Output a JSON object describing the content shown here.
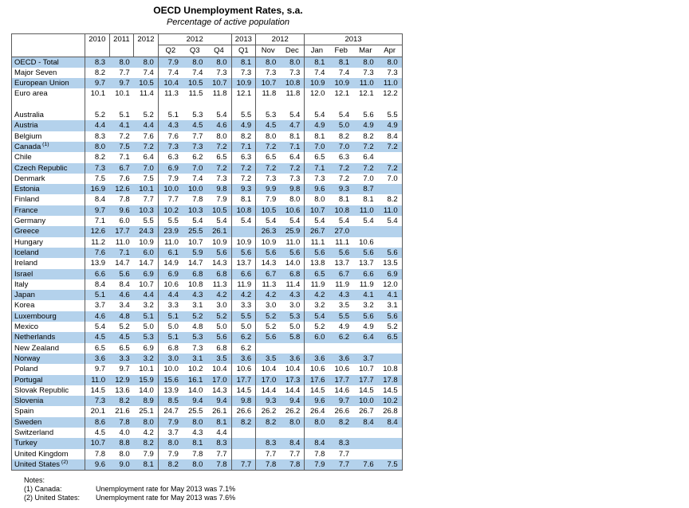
{
  "title": "OECD Unemployment Rates, s.a.",
  "subtitle": "Percentage of active population",
  "table": {
    "header": {
      "row1": [
        {
          "label": "",
          "rowspan": 2,
          "cls": "corner",
          "name": "corner-cell"
        },
        {
          "label": "2010",
          "rowspan": 2,
          "cls": "yr sep",
          "name": "col-header-2010"
        },
        {
          "label": "2011",
          "rowspan": 2,
          "cls": "yr sep",
          "name": "col-header-2011"
        },
        {
          "label": "2012",
          "rowspan": 2,
          "cls": "yr sep",
          "name": "col-header-2012"
        },
        {
          "label": "2012",
          "colspan": 3,
          "cls": "grp sep",
          "name": "group-header-2012-quarters"
        },
        {
          "label": "2013",
          "colspan": 1,
          "cls": "grp sep",
          "name": "group-header-2013-q1"
        },
        {
          "label": "2012",
          "colspan": 2,
          "cls": "grp sep",
          "name": "group-header-2012-months"
        },
        {
          "label": "2013",
          "colspan": 4,
          "cls": "grp sep",
          "name": "group-header-2013-months"
        }
      ],
      "row2": [
        "Q2",
        "Q3",
        "Q4",
        "Q1",
        "Nov",
        "Dec",
        "Jan",
        "Feb",
        "Mar",
        "Apr"
      ],
      "row2_sep_indices": [
        0,
        3,
        4,
        6
      ],
      "body_sep_indices": [
        0,
        3,
        6,
        7,
        9
      ]
    },
    "rows": [
      {
        "name": "OECD - Total",
        "values": [
          "8.3",
          "8.0",
          "8.0",
          "7.9",
          "8.0",
          "8.0",
          "8.1",
          "8.0",
          "8.0",
          "8.1",
          "8.1",
          "8.0",
          "8.0"
        ]
      },
      {
        "name": "Major Seven",
        "values": [
          "8.2",
          "7.7",
          "7.4",
          "7.4",
          "7.4",
          "7.3",
          "7.3",
          "7.3",
          "7.3",
          "7.4",
          "7.4",
          "7.3",
          "7.3"
        ]
      },
      {
        "name": "European Union",
        "values": [
          "9.7",
          "9.7",
          "10.5",
          "10.4",
          "10.5",
          "10.7",
          "10.9",
          "10.7",
          "10.8",
          "10.9",
          "10.9",
          "11.0",
          "11.0"
        ]
      },
      {
        "name": "Euro area",
        "values": [
          "10.1",
          "10.1",
          "11.4",
          "11.3",
          "11.5",
          "11.8",
          "12.1",
          "11.8",
          "11.8",
          "12.0",
          "12.1",
          "12.1",
          "12.2"
        ]
      },
      {
        "spacer": true
      },
      {
        "name": "Australia",
        "values": [
          "5.2",
          "5.1",
          "5.2",
          "5.1",
          "5.3",
          "5.4",
          "5.5",
          "5.3",
          "5.4",
          "5.4",
          "5.4",
          "5.6",
          "5.5"
        ]
      },
      {
        "name": "Austria",
        "values": [
          "4.4",
          "4.1",
          "4.4",
          "4.3",
          "4.5",
          "4.6",
          "4.9",
          "4.5",
          "4.7",
          "4.9",
          "5.0",
          "4.9",
          "4.9"
        ]
      },
      {
        "name": "Belgium",
        "values": [
          "8.3",
          "7.2",
          "7.6",
          "7.6",
          "7.7",
          "8.0",
          "8.2",
          "8.0",
          "8.1",
          "8.1",
          "8.2",
          "8.2",
          "8.4"
        ]
      },
      {
        "name": "Canada",
        "sup": "(1)",
        "values": [
          "8.0",
          "7.5",
          "7.2",
          "7.3",
          "7.3",
          "7.2",
          "7.1",
          "7.2",
          "7.1",
          "7.0",
          "7.0",
          "7.2",
          "7.2"
        ]
      },
      {
        "name": "Chile",
        "values": [
          "8.2",
          "7.1",
          "6.4",
          "6.3",
          "6.2",
          "6.5",
          "6.3",
          "6.5",
          "6.4",
          "6.5",
          "6.3",
          "6.4",
          ""
        ]
      },
      {
        "name": "Czech Republic",
        "values": [
          "7.3",
          "6.7",
          "7.0",
          "6.9",
          "7.0",
          "7.2",
          "7.2",
          "7.2",
          "7.2",
          "7.1",
          "7.2",
          "7.2",
          "7.2"
        ]
      },
      {
        "name": "Denmark",
        "values": [
          "7.5",
          "7.6",
          "7.5",
          "7.9",
          "7.4",
          "7.3",
          "7.2",
          "7.3",
          "7.3",
          "7.3",
          "7.2",
          "7.0",
          "7.0"
        ]
      },
      {
        "name": "Estonia",
        "values": [
          "16.9",
          "12.6",
          "10.1",
          "10.0",
          "10.0",
          "9.8",
          "9.3",
          "9.9",
          "9.8",
          "9.6",
          "9.3",
          "8.7",
          ""
        ]
      },
      {
        "name": "Finland",
        "values": [
          "8.4",
          "7.8",
          "7.7",
          "7.7",
          "7.8",
          "7.9",
          "8.1",
          "7.9",
          "8.0",
          "8.0",
          "8.1",
          "8.1",
          "8.2"
        ]
      },
      {
        "name": "France",
        "values": [
          "9.7",
          "9.6",
          "10.3",
          "10.2",
          "10.3",
          "10.5",
          "10.8",
          "10.5",
          "10.6",
          "10.7",
          "10.8",
          "11.0",
          "11.0"
        ]
      },
      {
        "name": "Germany",
        "values": [
          "7.1",
          "6.0",
          "5.5",
          "5.5",
          "5.4",
          "5.4",
          "5.4",
          "5.4",
          "5.4",
          "5.4",
          "5.4",
          "5.4",
          "5.4"
        ]
      },
      {
        "name": "Greece",
        "values": [
          "12.6",
          "17.7",
          "24.3",
          "23.9",
          "25.5",
          "26.1",
          "",
          "26.3",
          "25.9",
          "26.7",
          "27.0",
          "",
          ""
        ]
      },
      {
        "name": "Hungary",
        "values": [
          "11.2",
          "11.0",
          "10.9",
          "11.0",
          "10.7",
          "10.9",
          "10.9",
          "10.9",
          "11.0",
          "11.1",
          "11.1",
          "10.6",
          ""
        ]
      },
      {
        "name": "Iceland",
        "values": [
          "7.6",
          "7.1",
          "6.0",
          "6.1",
          "5.9",
          "5.6",
          "5.6",
          "5.6",
          "5.6",
          "5.6",
          "5.6",
          "5.6",
          "5.6"
        ]
      },
      {
        "name": "Ireland",
        "values": [
          "13.9",
          "14.7",
          "14.7",
          "14.9",
          "14.7",
          "14.3",
          "13.7",
          "14.3",
          "14.0",
          "13.8",
          "13.7",
          "13.7",
          "13.5"
        ]
      },
      {
        "name": "Israel",
        "values": [
          "6.6",
          "5.6",
          "6.9",
          "6.9",
          "6.8",
          "6.8",
          "6.6",
          "6.7",
          "6.8",
          "6.5",
          "6.7",
          "6.6",
          "6.9"
        ]
      },
      {
        "name": "Italy",
        "values": [
          "8.4",
          "8.4",
          "10.7",
          "10.6",
          "10.8",
          "11.3",
          "11.9",
          "11.3",
          "11.4",
          "11.9",
          "11.9",
          "11.9",
          "12.0"
        ]
      },
      {
        "name": "Japan",
        "values": [
          "5.1",
          "4.6",
          "4.4",
          "4.4",
          "4.3",
          "4.2",
          "4.2",
          "4.2",
          "4.3",
          "4.2",
          "4.3",
          "4.1",
          "4.1"
        ]
      },
      {
        "name": "Korea",
        "values": [
          "3.7",
          "3.4",
          "3.2",
          "3.3",
          "3.1",
          "3.0",
          "3.3",
          "3.0",
          "3.0",
          "3.2",
          "3.5",
          "3.2",
          "3.1"
        ]
      },
      {
        "name": "Luxembourg",
        "values": [
          "4.6",
          "4.8",
          "5.1",
          "5.1",
          "5.2",
          "5.2",
          "5.5",
          "5.2",
          "5.3",
          "5.4",
          "5.5",
          "5.6",
          "5.6"
        ]
      },
      {
        "name": "Mexico",
        "values": [
          "5.4",
          "5.2",
          "5.0",
          "5.0",
          "4.8",
          "5.0",
          "5.0",
          "5.2",
          "5.0",
          "5.2",
          "4.9",
          "4.9",
          "5.2"
        ]
      },
      {
        "name": "Netherlands",
        "values": [
          "4.5",
          "4.5",
          "5.3",
          "5.1",
          "5.3",
          "5.6",
          "6.2",
          "5.6",
          "5.8",
          "6.0",
          "6.2",
          "6.4",
          "6.5"
        ]
      },
      {
        "name": "New Zealand",
        "values": [
          "6.5",
          "6.5",
          "6.9",
          "6.8",
          "7.3",
          "6.8",
          "6.2",
          "",
          "",
          "",
          "",
          "",
          ""
        ]
      },
      {
        "name": "Norway",
        "values": [
          "3.6",
          "3.3",
          "3.2",
          "3.0",
          "3.1",
          "3.5",
          "3.6",
          "3.5",
          "3.6",
          "3.6",
          "3.6",
          "3.7",
          ""
        ]
      },
      {
        "name": "Poland",
        "values": [
          "9.7",
          "9.7",
          "10.1",
          "10.0",
          "10.2",
          "10.4",
          "10.6",
          "10.4",
          "10.4",
          "10.6",
          "10.6",
          "10.7",
          "10.8"
        ]
      },
      {
        "name": "Portugal",
        "values": [
          "11.0",
          "12.9",
          "15.9",
          "15.6",
          "16.1",
          "17.0",
          "17.7",
          "17.0",
          "17.3",
          "17.6",
          "17.7",
          "17.7",
          "17.8"
        ]
      },
      {
        "name": "Slovak Republic",
        "values": [
          "14.5",
          "13.6",
          "14.0",
          "13.9",
          "14.0",
          "14.3",
          "14.5",
          "14.4",
          "14.4",
          "14.5",
          "14.6",
          "14.5",
          "14.5"
        ]
      },
      {
        "name": "Slovenia",
        "values": [
          "7.3",
          "8.2",
          "8.9",
          "8.5",
          "9.4",
          "9.4",
          "9.8",
          "9.3",
          "9.4",
          "9.6",
          "9.7",
          "10.0",
          "10.2"
        ]
      },
      {
        "name": "Spain",
        "values": [
          "20.1",
          "21.6",
          "25.1",
          "24.7",
          "25.5",
          "26.1",
          "26.6",
          "26.2",
          "26.2",
          "26.4",
          "26.6",
          "26.7",
          "26.8"
        ]
      },
      {
        "name": "Sweden",
        "values": [
          "8.6",
          "7.8",
          "8.0",
          "7.9",
          "8.0",
          "8.1",
          "8.2",
          "8.2",
          "8.0",
          "8.0",
          "8.2",
          "8.4",
          "8.4"
        ]
      },
      {
        "name": "Switzerland",
        "values": [
          "4.5",
          "4.0",
          "4.2",
          "3.7",
          "4.3",
          "4.4",
          "",
          "",
          "",
          "",
          "",
          "",
          ""
        ]
      },
      {
        "name": "Turkey",
        "values": [
          "10.7",
          "8.8",
          "8.2",
          "8.0",
          "8.1",
          "8.3",
          "",
          "8.3",
          "8.4",
          "8.4",
          "8.3",
          "",
          ""
        ]
      },
      {
        "name": "United Kingdom",
        "values": [
          "7.8",
          "8.0",
          "7.9",
          "7.9",
          "7.8",
          "7.7",
          "",
          "7.7",
          "7.7",
          "7.8",
          "7.7",
          "",
          ""
        ]
      },
      {
        "name": "United States",
        "sup": "(2)",
        "values": [
          "9.6",
          "9.0",
          "8.1",
          "8.2",
          "8.0",
          "7.8",
          "7.7",
          "7.8",
          "7.8",
          "7.9",
          "7.7",
          "7.6",
          "7.5"
        ]
      }
    ]
  },
  "notes": {
    "label": "Notes:",
    "items": [
      {
        "label": "(1) Canada:",
        "text": "Unemployment rate for May 2013 was 7.1%"
      },
      {
        "label": "(2) United States:",
        "text": "Unemployment rate for May 2013 was 7.6%"
      }
    ]
  },
  "colors": {
    "row_highlight": "#b4d2ec",
    "border": "#5a5a5a"
  }
}
